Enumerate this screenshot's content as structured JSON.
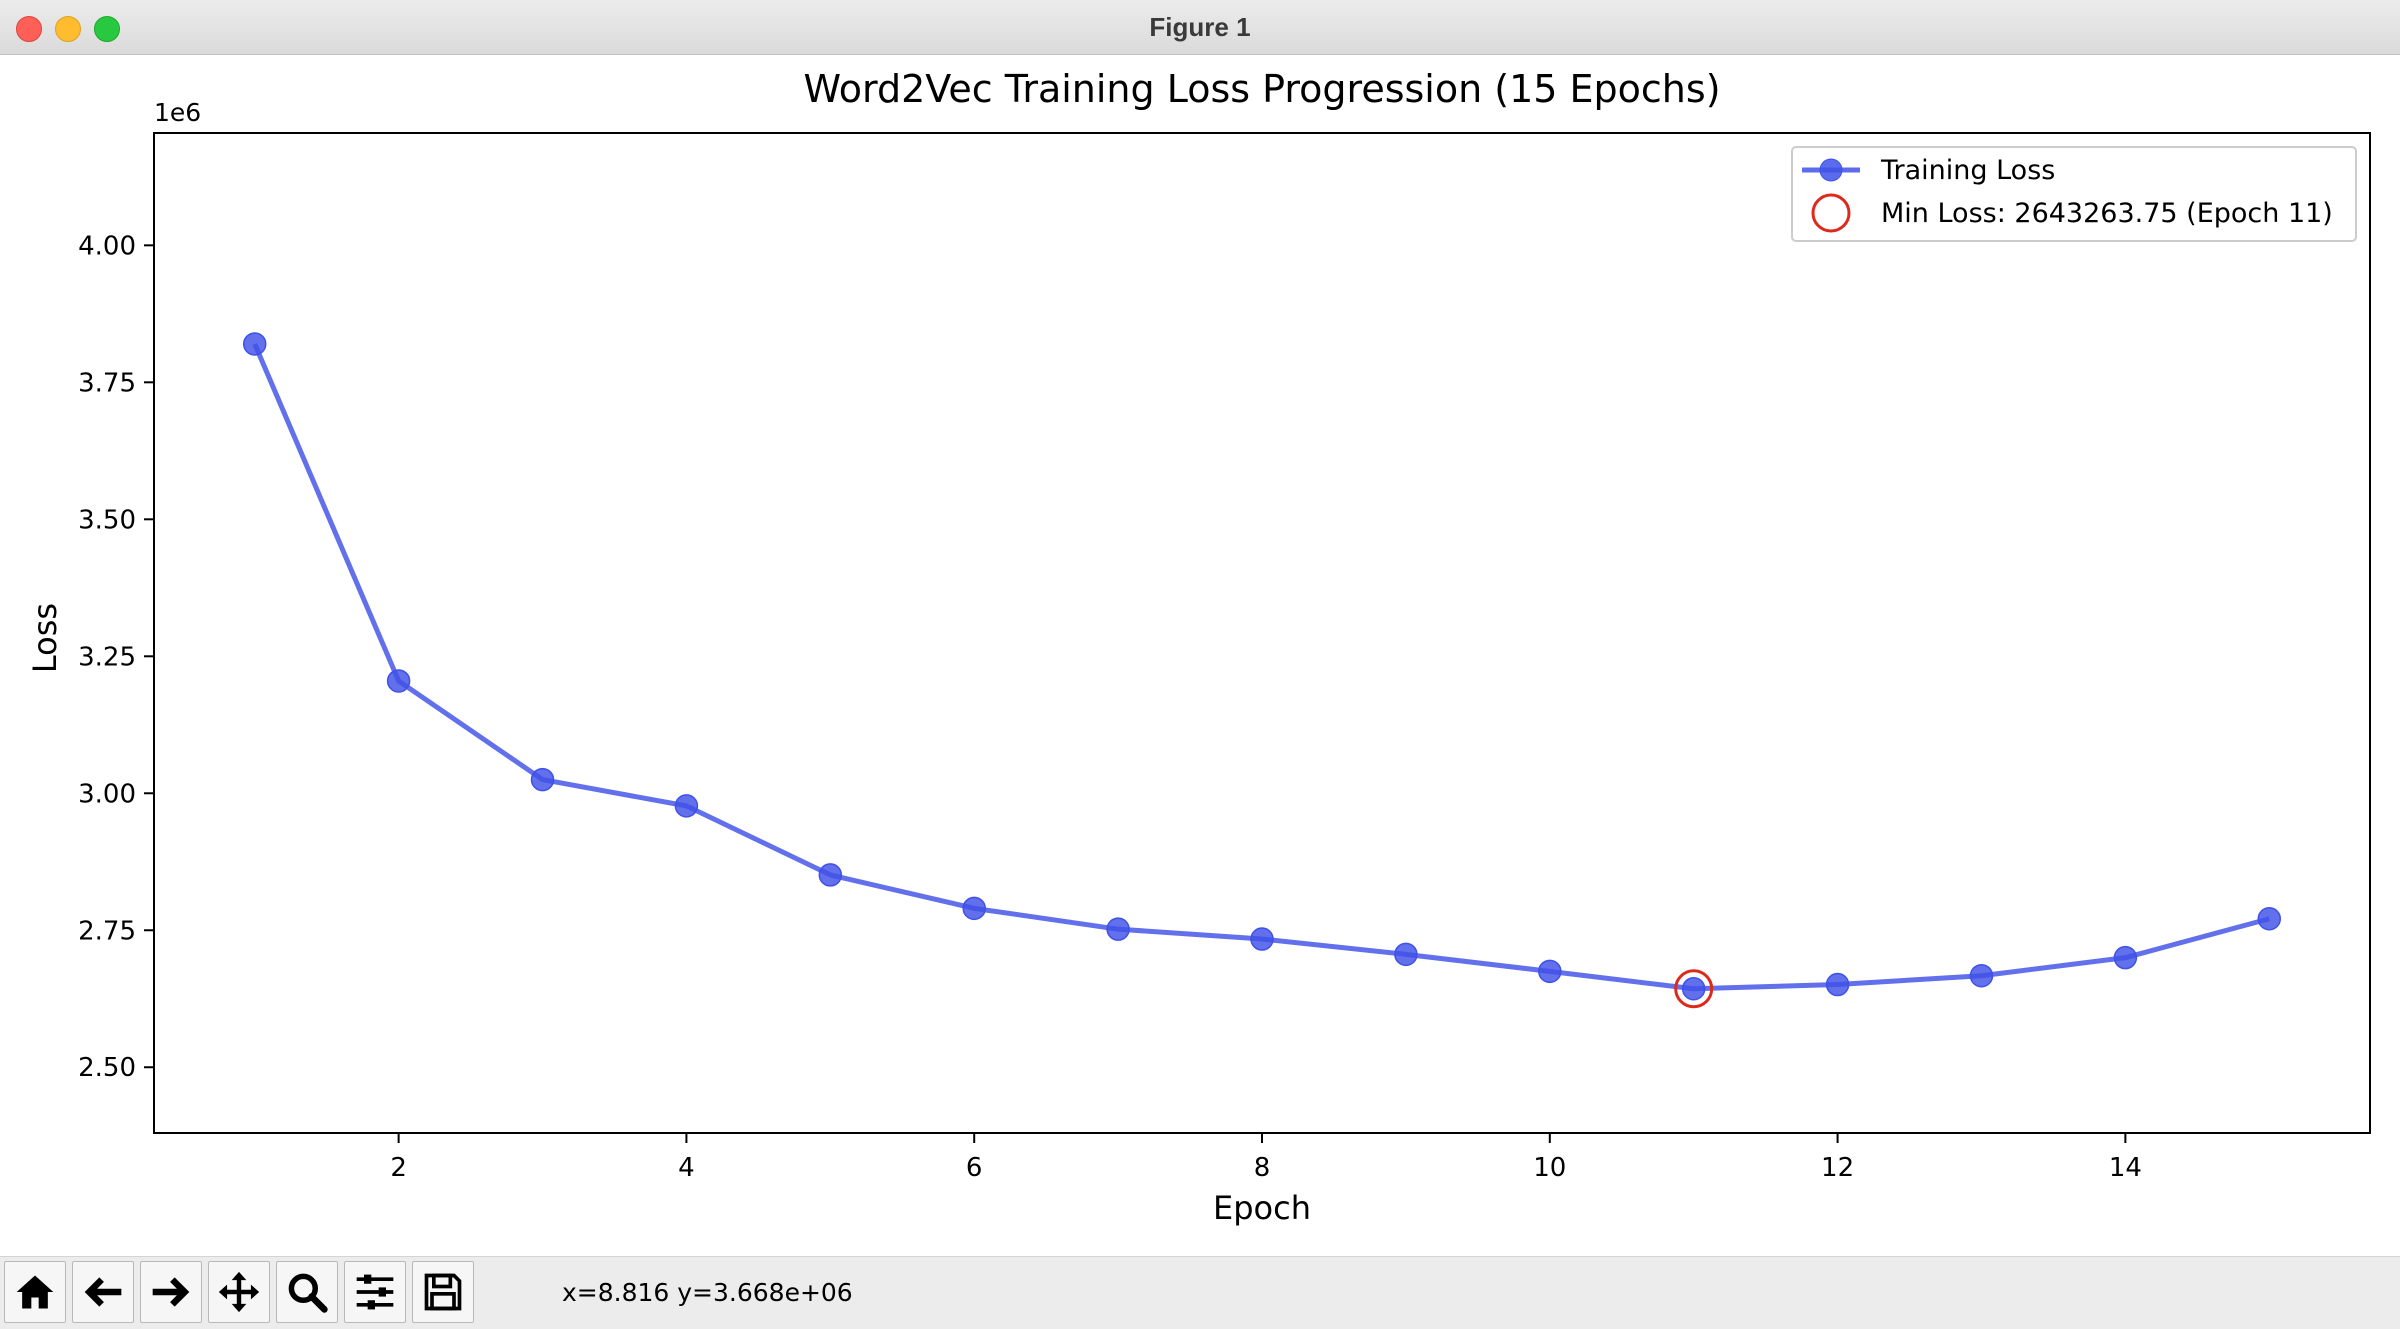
{
  "window": {
    "title": "Figure 1"
  },
  "toolbar": {
    "buttons": [
      {
        "name": "home",
        "icon": "home-icon"
      },
      {
        "name": "back",
        "icon": "arrow-left-icon"
      },
      {
        "name": "forward",
        "icon": "arrow-right-icon"
      },
      {
        "name": "pan",
        "icon": "move-icon"
      },
      {
        "name": "zoom",
        "icon": "search-icon"
      },
      {
        "name": "configure",
        "icon": "sliders-icon"
      },
      {
        "name": "save",
        "icon": "save-icon"
      }
    ],
    "coords": "x=8.816 y=3.668e+06"
  },
  "chart_data": {
    "type": "line",
    "title": "Word2Vec Training Loss Progression (15 Epochs)",
    "xlabel": "Epoch",
    "ylabel": "Loss",
    "y_offset_label": "1e6",
    "xlim": [
      0.3,
      15.7
    ],
    "ylim": [
      2380000,
      4205000
    ],
    "xticks": [
      2,
      4,
      6,
      8,
      10,
      12,
      14
    ],
    "xtick_labels": [
      "2",
      "4",
      "6",
      "8",
      "10",
      "12",
      "14"
    ],
    "yticks": [
      2500000,
      2750000,
      3000000,
      3250000,
      3500000,
      3750000,
      4000000
    ],
    "ytick_labels": [
      "2.50",
      "2.75",
      "3.00",
      "3.25",
      "3.50",
      "3.75",
      "4.00"
    ],
    "grid": false,
    "legend_position": "top-right",
    "series": [
      {
        "name": "Training Loss",
        "color": "#3f51e8",
        "x": [
          1,
          2,
          3,
          4,
          5,
          6,
          7,
          8,
          9,
          10,
          11,
          12,
          13,
          14,
          15
        ],
        "y": [
          3820000,
          3205000,
          3025000,
          2977000,
          2851000,
          2790000,
          2752000,
          2734000,
          2706000,
          2675000,
          2643263.75,
          2651000,
          2667000,
          2700000,
          2771000
        ]
      }
    ],
    "min_marker": {
      "label": "Min Loss: 2643263.75 (Epoch 11)",
      "x": 11,
      "y": 2643263.75,
      "color": "#dd2a1c"
    }
  }
}
